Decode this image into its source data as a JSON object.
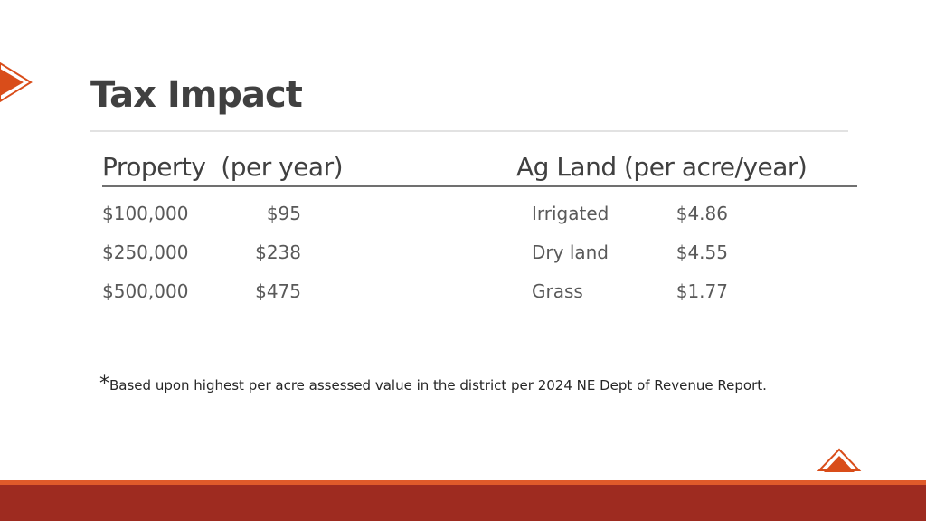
{
  "title": "Tax Impact",
  "property": {
    "header": "Property  (per year)",
    "rows": [
      [
        "$100,000",
        "$95"
      ],
      [
        "$250,000",
        "$238"
      ],
      [
        "$500,000",
        "$475"
      ]
    ]
  },
  "ag_land": {
    "header": "Ag Land (per acre/year)",
    "rows": [
      [
        "Irrigated",
        "$4.86"
      ],
      [
        "Dry land",
        "$4.55"
      ],
      [
        "Grass",
        "$1.77"
      ]
    ]
  },
  "footnote": {
    "mark": "*",
    "text": "Based upon highest per acre assessed value in the district per 2024 NE Dept of Revenue Report."
  }
}
